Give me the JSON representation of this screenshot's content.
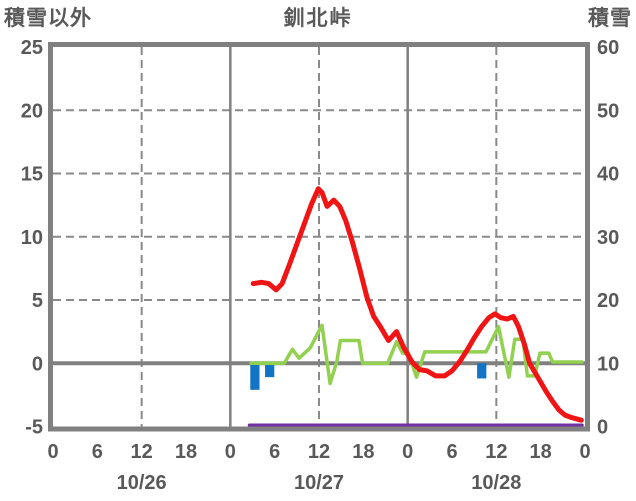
{
  "header": {
    "left_label": "積雪以外",
    "title": "釧北峠",
    "right_label": "積雪"
  },
  "colors": {
    "frame_gray": "#808080",
    "grid_gray": "#8a8a8a",
    "text_gray": "#595959",
    "temperature_red": "#f01414",
    "green_series": "#92d050",
    "precip_blue": "#1274c4",
    "snow_depth_purple": "#7030a0",
    "background": "#ffffff"
  },
  "chart_data": {
    "type": "line",
    "title": "釧北峠",
    "left_axis": {
      "label": "積雪以外",
      "min": -5,
      "max": 25,
      "tick_values": [
        25,
        20,
        15,
        10,
        5,
        0,
        -5
      ],
      "tick_labels": [
        "25",
        "20",
        "15",
        "10",
        "5",
        "0",
        "-5"
      ]
    },
    "right_axis": {
      "label": "積雪",
      "min": 0,
      "max": 60,
      "tick_values": [
        60,
        50,
        40,
        30,
        20,
        10,
        0
      ],
      "tick_labels": [
        "60",
        "50",
        "40",
        "30",
        "20",
        "10",
        "0"
      ]
    },
    "x_axis": {
      "span_hours": 72,
      "hour_tick_positions": [
        0,
        6,
        12,
        18,
        24,
        30,
        36,
        42,
        48,
        54,
        60,
        66,
        72
      ],
      "hour_tick_labels": [
        "0",
        "6",
        "12",
        "18",
        "0",
        "6",
        "12",
        "18",
        "0",
        "6",
        "12",
        "18",
        "0"
      ],
      "date_labels": [
        {
          "label": "10/26",
          "center_hour": 12
        },
        {
          "label": "10/27",
          "center_hour": 36
        },
        {
          "label": "10/28",
          "center_hour": 60
        }
      ],
      "solid_gridline_hours": [
        24,
        48
      ],
      "dashed_gridline_hours": [
        12,
        36,
        60
      ]
    },
    "grid": {
      "dashed_left_values": [
        20,
        15,
        10,
        5
      ],
      "solid_left_values": [
        0
      ]
    },
    "series": [
      {
        "name": "snow-depth-purple-line",
        "type": "line",
        "axis": "right",
        "color": "#7030a0",
        "stroke_width": 3.5,
        "points": [
          [
            26.6,
            0.2
          ],
          [
            71.6,
            0.2
          ]
        ]
      },
      {
        "name": "precipitation-blue-bars",
        "type": "bar",
        "axis": "left",
        "color": "#1274c4",
        "bar_width_hours": 1.25,
        "bars": [
          [
            26.7,
            -2.1
          ],
          [
            28.7,
            -1.1
          ],
          [
            57.4,
            -1.2
          ]
        ]
      },
      {
        "name": "green-line",
        "type": "line",
        "axis": "left",
        "color": "#92d050",
        "stroke_width": 3.5,
        "points": [
          [
            26.8,
            0
          ],
          [
            31.3,
            0
          ],
          [
            32.4,
            1.1
          ],
          [
            33.3,
            0.4
          ],
          [
            34.8,
            1.2
          ],
          [
            36.4,
            3.0
          ],
          [
            37.5,
            -1.6
          ],
          [
            38.4,
            0.1
          ],
          [
            38.9,
            1.8
          ],
          [
            41.4,
            1.8
          ],
          [
            41.9,
            0
          ],
          [
            45.3,
            0
          ],
          [
            46.5,
            1.7
          ],
          [
            47.3,
            0.8
          ],
          [
            48.1,
            0.8
          ],
          [
            49.2,
            -1.1
          ],
          [
            50.3,
            0.9
          ],
          [
            58.6,
            0.9
          ],
          [
            60.3,
            2.9
          ],
          [
            61.7,
            -1.1
          ],
          [
            62.5,
            1.9
          ],
          [
            63.6,
            1.9
          ],
          [
            64.2,
            -1.0
          ],
          [
            65.2,
            -1.0
          ],
          [
            65.9,
            0.8
          ],
          [
            67.1,
            0.8
          ],
          [
            67.6,
            0.1
          ],
          [
            71.6,
            0.1
          ]
        ]
      },
      {
        "name": "temperature-red-line",
        "type": "line",
        "axis": "left",
        "color": "#f01414",
        "stroke_width": 5,
        "points": [
          [
            27.1,
            6.3
          ],
          [
            28.2,
            6.4
          ],
          [
            29.2,
            6.3
          ],
          [
            30.2,
            5.8
          ],
          [
            31,
            6.3
          ],
          [
            32,
            7.8
          ],
          [
            33,
            9.4
          ],
          [
            34,
            11.0
          ],
          [
            35,
            12.6
          ],
          [
            35.9,
            13.8
          ],
          [
            36.4,
            13.5
          ],
          [
            37.1,
            12.4
          ],
          [
            38,
            12.9
          ],
          [
            38.8,
            12.4
          ],
          [
            39.6,
            11.3
          ],
          [
            40.5,
            9.6
          ],
          [
            41.5,
            7.5
          ],
          [
            42.5,
            5.2
          ],
          [
            43.4,
            3.7
          ],
          [
            44.3,
            2.9
          ],
          [
            45.4,
            1.8
          ],
          [
            46.5,
            2.5
          ],
          [
            47.5,
            1.2
          ],
          [
            48.6,
            0.1
          ],
          [
            49.6,
            -0.5
          ],
          [
            50.6,
            -0.6
          ],
          [
            51.8,
            -1.0
          ],
          [
            53,
            -1.0
          ],
          [
            54,
            -0.6
          ],
          [
            55,
            0.1
          ],
          [
            56,
            1.0
          ],
          [
            57,
            2.0
          ],
          [
            58,
            2.9
          ],
          [
            59,
            3.6
          ],
          [
            59.8,
            3.9
          ],
          [
            60.6,
            3.6
          ],
          [
            61.5,
            3.5
          ],
          [
            62.3,
            3.7
          ],
          [
            63,
            2.9
          ],
          [
            63.8,
            1.5
          ],
          [
            64.5,
            0.0
          ],
          [
            65.2,
            -0.7
          ],
          [
            66,
            -1.5
          ],
          [
            66.8,
            -2.3
          ],
          [
            67.6,
            -3.0
          ],
          [
            68.5,
            -3.7
          ],
          [
            69.3,
            -4.1
          ],
          [
            70.2,
            -4.3
          ],
          [
            71.5,
            -4.5
          ]
        ]
      }
    ]
  }
}
